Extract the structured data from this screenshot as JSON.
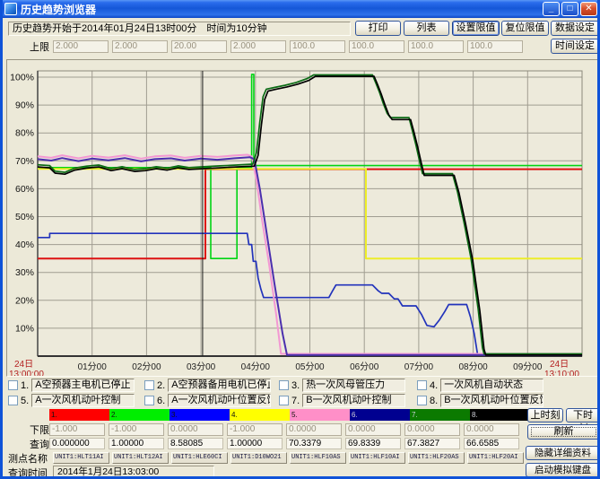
{
  "window": {
    "title": "历史趋势浏览器"
  },
  "toolbar": {
    "info_text": "历史趋势开始于2014年01月24日13时00分　时间为10分钟",
    "buttons": [
      "打印",
      "列表",
      "设置限值",
      "复位限值",
      "数据设定"
    ],
    "default_button": "设置限值",
    "time_setting_label": "时间设定"
  },
  "limits": {
    "upper_label": "上限",
    "upper_values": [
      "2.000",
      "2.000",
      "20.00",
      "2.000",
      "100.0",
      "100.0",
      "100.0",
      "100.0"
    ],
    "lower_label": "下限",
    "lower_values": [
      "-1.000",
      "-1.000",
      "0.0000",
      "-1.000",
      "0.0000",
      "0.0000",
      "0.0000",
      "0.0000"
    ]
  },
  "query_row": {
    "label": "查询",
    "values": [
      "0.000000",
      "1.00000",
      "8.58085",
      "1.00000",
      "70.3379",
      "69.8339",
      "67.3827",
      "66.6585"
    ]
  },
  "points_row": {
    "label": "测点名称",
    "tags": [
      "UNIT1:HLT11AI",
      "UNIT1:HLT12AI",
      "UNIT1:HLE60CI",
      "UNIT1:D10WO21",
      "UNIT1:HLF10AS",
      "UNIT1:HLF10AI",
      "UNIT1:HLF20AS",
      "UNIT1:HLF20AI"
    ]
  },
  "query_time": {
    "label": "查询时间",
    "value": "2014年1月24日13:03:00"
  },
  "legend": {
    "items": [
      {
        "num": "1.",
        "label": "A空预器主电机已停止"
      },
      {
        "num": "2.",
        "label": "A空预器备用电机已停止"
      },
      {
        "num": "3.",
        "label": "热一次风母管压力"
      },
      {
        "num": "4.",
        "label": "一次风机自动状态"
      },
      {
        "num": "5.",
        "label": "A一次风机动叶控制"
      },
      {
        "num": "6.",
        "label": "A一次风机动叶位置反馈"
      },
      {
        "num": "7.",
        "label": "B一次风机动叶控制"
      },
      {
        "num": "8.",
        "label": "B一次风机动叶位置反馈"
      }
    ],
    "pen_cells": [
      {
        "num": "1.",
        "color": "#ff0000"
      },
      {
        "num": "2.",
        "color": "#00ee00"
      },
      {
        "num": "3.",
        "color": "#0000ff"
      },
      {
        "num": "4.",
        "color": "#ffff00"
      },
      {
        "num": "5.",
        "color": "#ff8fc8"
      },
      {
        "num": "6.",
        "color": "#000090"
      },
      {
        "num": "7.",
        "color": "#0b7a00"
      },
      {
        "num": "8.",
        "color": "#000000"
      }
    ]
  },
  "nav_buttons": {
    "prev": "上时刻",
    "next": "下时刻",
    "refresh": "刷新",
    "hide_details": "隐藏详细资料",
    "soft_keyboard": "启动模拟键盘"
  },
  "chart_data": {
    "type": "line",
    "x_axis": {
      "unit": "minutes",
      "range": [
        0,
        10
      ],
      "tick_labels": [
        "01分00",
        "02分00",
        "03分00",
        "04分00",
        "05分00",
        "06分00",
        "07分00",
        "08分00",
        "09分00"
      ],
      "start_label": [
        "24日",
        "13:00:00"
      ],
      "end_label": [
        "24日",
        "13:10:00"
      ],
      "end_label_color": "#b42020"
    },
    "y_axis": {
      "range": [
        0,
        102
      ],
      "ticks": [
        10,
        20,
        30,
        40,
        50,
        60,
        70,
        80,
        90,
        100
      ],
      "tick_suffix": "%"
    },
    "grid": true,
    "cursor_min": 3.03,
    "cursor_color": "#1a1a1a",
    "plot_bg": "#edeadb",
    "grid_color": "#a09d91",
    "series": [
      {
        "name": "A空预器主电机已停止",
        "color": "#dd1111",
        "width": 2,
        "points": [
          [
            0,
            35
          ],
          [
            3.08,
            35
          ],
          [
            3.08,
            67
          ],
          [
            10,
            67
          ]
        ]
      },
      {
        "name": "A空预器备用电机已停止",
        "color": "#00d414",
        "width": 1.6,
        "points": [
          [
            0,
            67.6
          ],
          [
            3.18,
            67.6
          ],
          [
            3.18,
            35
          ],
          [
            3.66,
            35
          ],
          [
            3.66,
            67.6
          ],
          [
            3.93,
            67.6
          ],
          [
            3.93,
            101
          ],
          [
            3.97,
            101
          ],
          [
            3.97,
            68.3
          ],
          [
            10,
            68.3
          ]
        ]
      },
      {
        "name": "热一次风母管压力",
        "color": "#2233bb",
        "width": 1.7,
        "points": [
          [
            0,
            42.5
          ],
          [
            0.22,
            42.5
          ],
          [
            0.22,
            44
          ],
          [
            3.85,
            44
          ],
          [
            3.88,
            40
          ],
          [
            3.93,
            40
          ],
          [
            3.96,
            34
          ],
          [
            4.01,
            34
          ],
          [
            4.05,
            28
          ],
          [
            4.1,
            24
          ],
          [
            4.15,
            21
          ],
          [
            5.35,
            21
          ],
          [
            5.42,
            23.5
          ],
          [
            5.48,
            25.5
          ],
          [
            6.15,
            25.5
          ],
          [
            6.25,
            23.5
          ],
          [
            6.32,
            22.5
          ],
          [
            6.45,
            22.5
          ],
          [
            6.55,
            20.5
          ],
          [
            6.62,
            20.5
          ],
          [
            6.7,
            18
          ],
          [
            6.95,
            18
          ],
          [
            7.05,
            15
          ],
          [
            7.15,
            11
          ],
          [
            7.28,
            10.5
          ],
          [
            7.38,
            13
          ],
          [
            7.48,
            16
          ],
          [
            7.55,
            18.5
          ],
          [
            7.88,
            18.5
          ],
          [
            7.95,
            14
          ],
          [
            8.02,
            8
          ],
          [
            8.08,
            0.6
          ],
          [
            10,
            0.6
          ]
        ]
      },
      {
        "name": "一次风机自动状态",
        "color": "#eded28",
        "width": 2,
        "points": [
          [
            0,
            67.1
          ],
          [
            6.03,
            67.1
          ],
          [
            6.03,
            35
          ],
          [
            10,
            35
          ]
        ]
      },
      {
        "name": "A一次风机动叶控制",
        "color": "#f398d3",
        "width": 2,
        "points": [
          [
            0,
            71.6
          ],
          [
            0.25,
            71.1
          ],
          [
            0.45,
            72
          ],
          [
            0.75,
            70.9
          ],
          [
            1,
            71.8
          ],
          [
            1.3,
            71.2
          ],
          [
            1.6,
            72
          ],
          [
            1.9,
            70.8
          ],
          [
            2.15,
            71.6
          ],
          [
            2.45,
            71.9
          ],
          [
            2.7,
            71.1
          ],
          [
            3,
            71.8
          ],
          [
            3.3,
            71.4
          ],
          [
            3.6,
            71.9
          ],
          [
            3.85,
            72.2
          ],
          [
            3.93,
            71.6
          ],
          [
            4.02,
            63
          ],
          [
            4.12,
            49
          ],
          [
            4.25,
            33
          ],
          [
            4.38,
            15
          ],
          [
            4.47,
            0.8
          ],
          [
            10,
            0.8
          ]
        ]
      },
      {
        "name": "A一次风机动叶位置反馈",
        "color": "#4b2fae",
        "width": 2,
        "points": [
          [
            0,
            70.6
          ],
          [
            0.25,
            70.1
          ],
          [
            0.45,
            71
          ],
          [
            0.75,
            69.9
          ],
          [
            1,
            70.8
          ],
          [
            1.3,
            70.2
          ],
          [
            1.6,
            71
          ],
          [
            1.9,
            69.8
          ],
          [
            2.15,
            70.6
          ],
          [
            2.45,
            70.9
          ],
          [
            2.7,
            70.1
          ],
          [
            3,
            70.8
          ],
          [
            3.3,
            70.4
          ],
          [
            3.6,
            70.9
          ],
          [
            3.9,
            71.3
          ],
          [
            3.98,
            70.6
          ],
          [
            4.08,
            60
          ],
          [
            4.2,
            45
          ],
          [
            4.35,
            26
          ],
          [
            4.5,
            8
          ],
          [
            4.58,
            0.4
          ],
          [
            10,
            0.4
          ]
        ]
      },
      {
        "name": "B一次风机动叶控制",
        "color": "#0b6b15",
        "width": 1.7,
        "points": [
          [
            0,
            68.6
          ],
          [
            0.22,
            68.3
          ],
          [
            0.32,
            66.3
          ],
          [
            0.5,
            65.9
          ],
          [
            0.68,
            67.4
          ],
          [
            0.9,
            68.1
          ],
          [
            1.12,
            68.5
          ],
          [
            1.35,
            67.2
          ],
          [
            1.55,
            67.9
          ],
          [
            1.78,
            66.9
          ],
          [
            1.98,
            67.2
          ],
          [
            2.18,
            67.9
          ],
          [
            2.38,
            67.4
          ],
          [
            2.58,
            68.2
          ],
          [
            2.78,
            67.6
          ],
          [
            3.05,
            67.9
          ],
          [
            3.35,
            68.2
          ],
          [
            3.65,
            68.5
          ],
          [
            3.95,
            68.8
          ],
          [
            4.02,
            73
          ],
          [
            4.08,
            84
          ],
          [
            4.14,
            93
          ],
          [
            4.2,
            95.7
          ],
          [
            4.35,
            96.3
          ],
          [
            4.55,
            97.1
          ],
          [
            4.75,
            98.1
          ],
          [
            4.95,
            99.5
          ],
          [
            5.07,
            100.8
          ],
          [
            6.15,
            100.8
          ],
          [
            6.21,
            98
          ],
          [
            6.28,
            94.5
          ],
          [
            6.35,
            90.5
          ],
          [
            6.42,
            87
          ],
          [
            6.48,
            85.5
          ],
          [
            6.82,
            85.5
          ],
          [
            6.88,
            81
          ],
          [
            6.95,
            75.5
          ],
          [
            7.02,
            69.5
          ],
          [
            7.07,
            65.4
          ],
          [
            7.62,
            65.4
          ],
          [
            7.71,
            59
          ],
          [
            7.83,
            48
          ],
          [
            7.96,
            35
          ],
          [
            8.09,
            17
          ],
          [
            8.17,
            3
          ],
          [
            8.2,
            0.8
          ],
          [
            10,
            0.8
          ]
        ]
      },
      {
        "name": "B一次风机动叶位置反馈",
        "color": "#000000",
        "width": 1.7,
        "points": [
          [
            0,
            67.8
          ],
          [
            0.22,
            67.5
          ],
          [
            0.32,
            65.6
          ],
          [
            0.5,
            65.2
          ],
          [
            0.68,
            66.7
          ],
          [
            0.9,
            67.4
          ],
          [
            1.12,
            67.8
          ],
          [
            1.35,
            66.5
          ],
          [
            1.55,
            67.2
          ],
          [
            1.78,
            66.2
          ],
          [
            1.98,
            66.5
          ],
          [
            2.18,
            67.2
          ],
          [
            2.38,
            66.7
          ],
          [
            2.58,
            67.5
          ],
          [
            2.78,
            66.9
          ],
          [
            3.05,
            67.2
          ],
          [
            3.35,
            67.5
          ],
          [
            3.65,
            67.8
          ],
          [
            3.98,
            68.1
          ],
          [
            4.05,
            72
          ],
          [
            4.11,
            83
          ],
          [
            4.17,
            92
          ],
          [
            4.23,
            95
          ],
          [
            4.38,
            95.7
          ],
          [
            4.58,
            96.5
          ],
          [
            4.78,
            97.5
          ],
          [
            4.98,
            98.8
          ],
          [
            5.1,
            100.3
          ],
          [
            6.18,
            100.3
          ],
          [
            6.24,
            97.5
          ],
          [
            6.31,
            94
          ],
          [
            6.38,
            90
          ],
          [
            6.45,
            86.5
          ],
          [
            6.51,
            84.8
          ],
          [
            6.85,
            84.8
          ],
          [
            6.91,
            80.5
          ],
          [
            6.98,
            75
          ],
          [
            7.05,
            69
          ],
          [
            7.1,
            64.8
          ],
          [
            7.65,
            64.8
          ],
          [
            7.74,
            58.5
          ],
          [
            7.86,
            47.5
          ],
          [
            7.99,
            34.5
          ],
          [
            8.12,
            16.5
          ],
          [
            8.2,
            2.5
          ],
          [
            8.23,
            0.4
          ],
          [
            10,
            0.4
          ]
        ]
      }
    ]
  }
}
